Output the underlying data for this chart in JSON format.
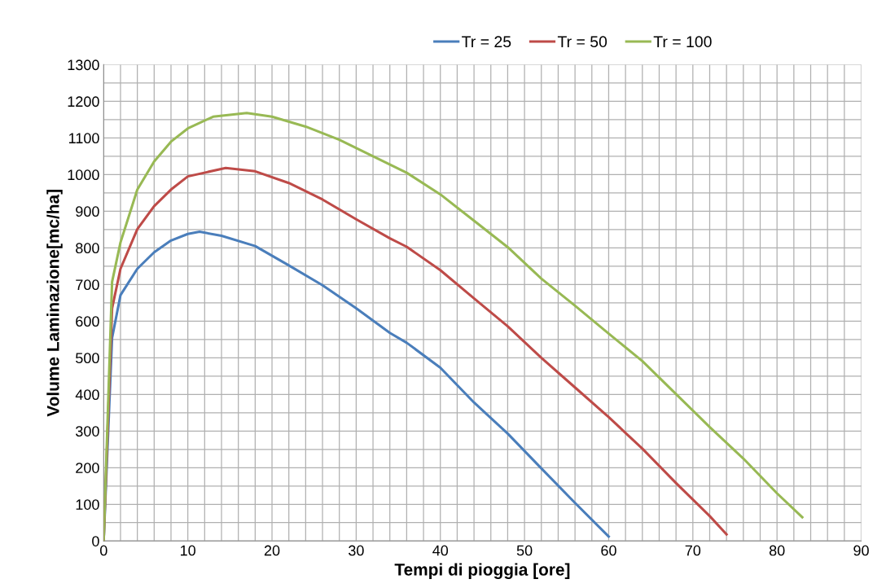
{
  "chart_data": {
    "type": "line",
    "xlabel": "Tempi di pioggia [ore]",
    "ylabel": "Volume Laminazione[mc/ha]",
    "xlim": [
      0,
      90
    ],
    "xticks": [
      0,
      10,
      20,
      30,
      40,
      50,
      60,
      70,
      80,
      90
    ],
    "ylim": [
      0,
      1300
    ],
    "yticks": [
      0,
      100,
      200,
      300,
      400,
      500,
      600,
      700,
      800,
      900,
      1000,
      1100,
      1200,
      1300
    ],
    "grid": true,
    "legend": "top",
    "marker": "none",
    "line_style": "solid",
    "series": [
      {
        "name": "Tr = 25",
        "color": "#4a7ebb",
        "x": [
          0,
          1,
          2,
          4,
          6,
          8,
          10,
          11.4,
          14,
          18,
          22,
          26,
          30,
          34,
          36,
          40,
          44,
          48,
          52,
          56,
          60
        ],
        "values": [
          0,
          554,
          671,
          743,
          788,
          820,
          838,
          844,
          833,
          805,
          752,
          698,
          635,
          568,
          541,
          473,
          378,
          293,
          198,
          104,
          12
        ]
      },
      {
        "name": "Tr = 50",
        "color": "#be4b48",
        "x": [
          0,
          1,
          2,
          4,
          6,
          8,
          10,
          14.5,
          18,
          22,
          26,
          30,
          34,
          36,
          40,
          44,
          48,
          52,
          56,
          60,
          64,
          68,
          72,
          74
        ],
        "values": [
          0,
          635,
          743,
          851,
          914,
          959,
          995,
          1018,
          1009,
          977,
          932,
          878,
          826,
          803,
          739,
          662,
          586,
          500,
          419,
          338,
          252,
          158,
          68,
          18
        ]
      },
      {
        "name": "Tr = 100",
        "color": "#98b954",
        "x": [
          0,
          1,
          2,
          4,
          6,
          8,
          10,
          13,
          17,
          20,
          24,
          28,
          32,
          36,
          40,
          44,
          48,
          52,
          56,
          60,
          64,
          68,
          72,
          76,
          80,
          83
        ],
        "values": [
          0,
          707,
          815,
          959,
          1036,
          1090,
          1126,
          1158,
          1168,
          1158,
          1131,
          1095,
          1050,
          1005,
          946,
          874,
          802,
          716,
          642,
          566,
          491,
          401,
          311,
          225,
          130,
          65
        ]
      }
    ]
  }
}
